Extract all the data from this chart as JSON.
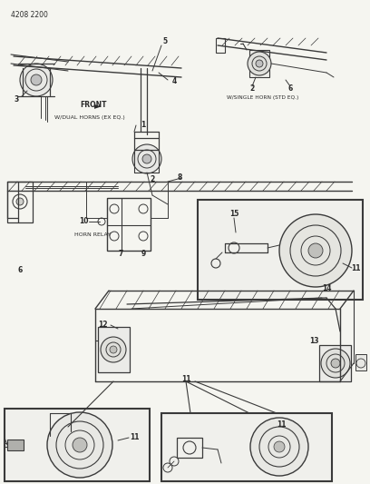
{
  "bg_color": "#f5f5f0",
  "line_color": "#3a3a3a",
  "text_color": "#2a2a2a",
  "fig_width": 4.08,
  "fig_height": 5.33,
  "dpi": 100,
  "title": "4208 2200",
  "label_dual": "W/DUAL HORNS (EX EQ.)",
  "label_single": "W/SINGLE HORN (STD EQ.)",
  "label_horn_relay": "HORN RELAY",
  "label_front": "FRONT"
}
